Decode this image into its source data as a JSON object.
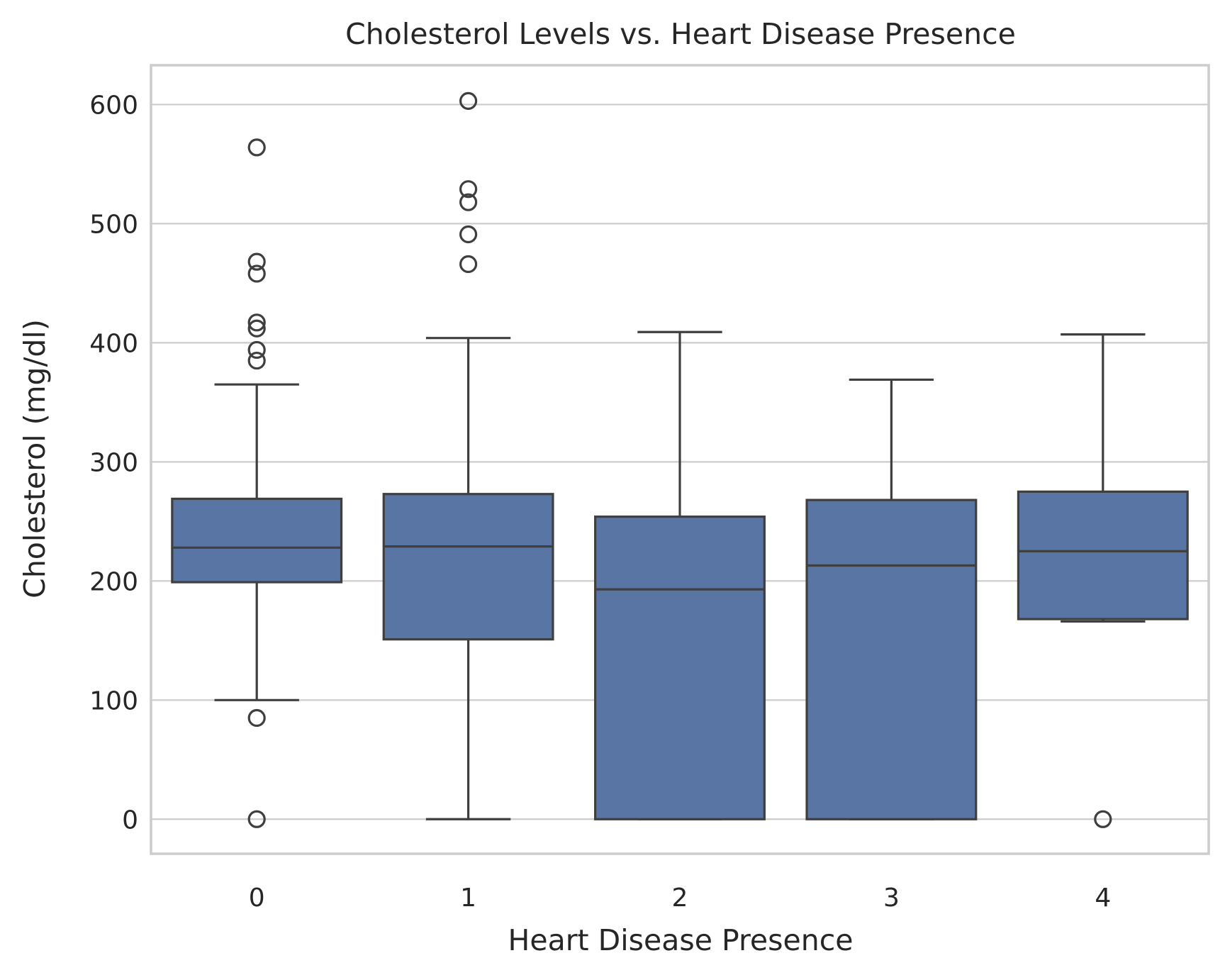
{
  "chart_data": {
    "type": "box",
    "title": "Cholesterol Levels vs. Heart Disease Presence",
    "xlabel": "Heart Disease Presence",
    "ylabel": "Cholesterol (mg/dl)",
    "ylim": [
      -29,
      633
    ],
    "yticks": [
      0,
      100,
      200,
      300,
      400,
      500,
      600
    ],
    "grid": "horizontal",
    "colors": {
      "box": "#5975a4",
      "line": "#3f3f3f",
      "grid": "#cccccc",
      "text": "#262626"
    },
    "categories": [
      "0",
      "1",
      "2",
      "3",
      "4"
    ],
    "boxes": [
      {
        "category": "0",
        "whisker_low": 100,
        "q1": 199,
        "median": 228,
        "q3": 269,
        "whisker_high": 365,
        "outliers": [
          564,
          468,
          458,
          417,
          412,
          394,
          385,
          85,
          0
        ]
      },
      {
        "category": "1",
        "whisker_low": 0,
        "q1": 151,
        "median": 229,
        "q3": 273,
        "whisker_high": 404,
        "outliers": [
          603,
          529,
          518,
          491,
          466
        ]
      },
      {
        "category": "2",
        "whisker_low": 0,
        "q1": 0,
        "median": 193,
        "q3": 254,
        "whisker_high": 409,
        "outliers": []
      },
      {
        "category": "3",
        "whisker_low": 0,
        "q1": 0,
        "median": 213,
        "q3": 268,
        "whisker_high": 369,
        "outliers": []
      },
      {
        "category": "4",
        "whisker_low": 166,
        "q1": 168,
        "median": 225,
        "q3": 275,
        "whisker_high": 407,
        "outliers": [
          0
        ]
      }
    ]
  }
}
